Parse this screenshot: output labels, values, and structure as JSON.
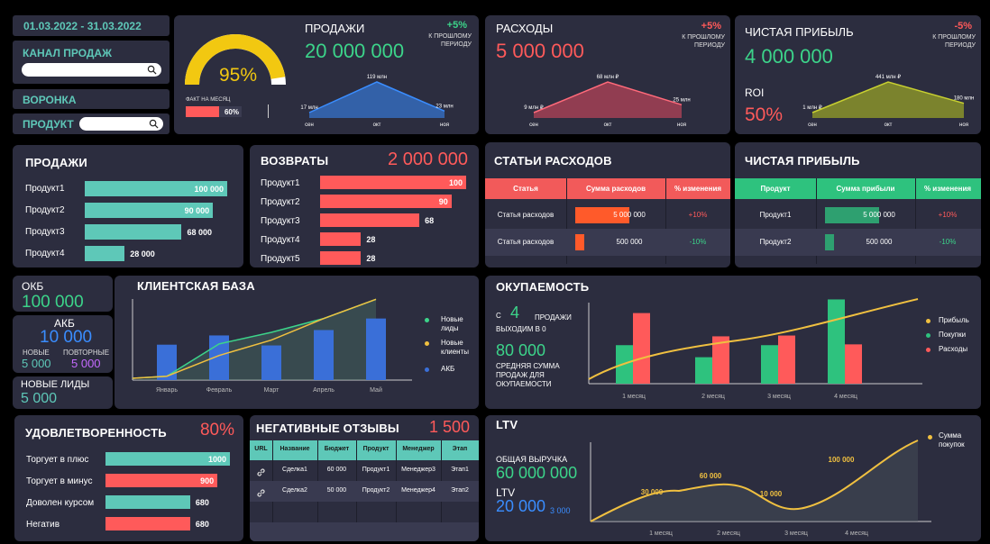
{
  "filters": {
    "date_range": "01.03.2022 - 31.03.2022",
    "channel_label": "КАНАЛ ПРОДАЖ",
    "funnel_label": "ВОРОНКА",
    "product_label": "ПРОДУКТ"
  },
  "gauge": {
    "percent_label": "95%",
    "fact_label": "ФАКТ НА МЕСЯЦ",
    "fact_percent": "60%",
    "fact_fraction": 0.6,
    "gauge_fraction": 0.95
  },
  "kpi_sales": {
    "title": "ПРОДАЖИ",
    "value": "20 000 000",
    "change": "+5%",
    "change_note": "К ПРОШЛОМУ ПЕРИОДУ",
    "chart_data": {
      "type": "area",
      "categories": [
        "сен",
        "окт",
        "ноя"
      ],
      "values": [
        17,
        119,
        23
      ],
      "labels": [
        "17 млн",
        "119 млн",
        "23 млн"
      ]
    }
  },
  "kpi_expenses": {
    "title": "РАСХОДЫ",
    "value": "5 000 000",
    "change": "+5%",
    "change_note": "К ПРОШЛОМУ ПЕРИОДУ",
    "chart_data": {
      "type": "area",
      "categories": [
        "сен",
        "окт",
        "ноя"
      ],
      "values": [
        9,
        68,
        25
      ],
      "labels": [
        "9 млн ₽",
        "68 млн ₽",
        "25 млн"
      ]
    }
  },
  "kpi_profit": {
    "title": "ЧИСТАЯ ПРИБЫЛЬ",
    "value": "4 000 000",
    "change": "-5%",
    "change_note": "К ПРОШЛОМУ ПЕРИОДУ",
    "roi_label": "ROI",
    "roi_value": "50%",
    "chart_data": {
      "type": "area",
      "categories": [
        "сен",
        "окт",
        "ноя"
      ],
      "values": [
        1,
        441,
        180
      ],
      "labels": [
        "1 млн ₽",
        "441 млн ₽",
        "180 млн"
      ]
    }
  },
  "sales_products": {
    "title": "ПРОДАЖИ",
    "chart_data": {
      "type": "bar",
      "categories": [
        "Продукт1",
        "Продукт2",
        "Продукт3",
        "Продукт4"
      ],
      "values": [
        100000,
        90000,
        68000,
        28000
      ],
      "value_labels": [
        "100 000",
        "90 000",
        "68 000",
        "28 000"
      ],
      "xlim": [
        0,
        100000
      ]
    }
  },
  "returns": {
    "title": "ВОЗВРАТЫ",
    "total": "2 000 000",
    "chart_data": {
      "type": "bar",
      "categories": [
        "Продукт1",
        "Продукт2",
        "Продукт3",
        "Продукт4",
        "Продукт5"
      ],
      "values": [
        100,
        90,
        68,
        28,
        28
      ],
      "value_labels": [
        "100",
        "90",
        "68",
        "28",
        "28"
      ],
      "xlim": [
        0,
        100
      ]
    }
  },
  "expense_items": {
    "title": "СТАТЬИ РАСХОДОВ",
    "headers": [
      "Статья",
      "Сумма расходов",
      "% изменения"
    ],
    "rows": [
      {
        "name": "Статья расходов",
        "amount": "5 000 000",
        "fraction": 1.0,
        "change": "+10%"
      },
      {
        "name": "Статья расходов",
        "amount": "500 000",
        "fraction": 0.1,
        "change": "-10%"
      }
    ]
  },
  "profit_items": {
    "title": "ЧИСТАЯ ПРИБЫЛЬ",
    "headers": [
      "Продукт",
      "Сумма прибыли",
      "% изменения"
    ],
    "rows": [
      {
        "name": "Продукт1",
        "amount": "5 000 000",
        "fraction": 1.0,
        "change": "+10%"
      },
      {
        "name": "Продукт2",
        "amount": "500 000",
        "fraction": 0.1,
        "change": "-10%"
      }
    ]
  },
  "okb": {
    "label": "ОКБ",
    "value": "100 000"
  },
  "akb": {
    "label": "АКБ",
    "value": "10 000",
    "new_label": "НОВЫЕ",
    "new_value": "5 000",
    "repeat_label": "ПОВТОРНЫЕ",
    "repeat_value": "5 000"
  },
  "new_leads": {
    "label": "НОВЫЕ ЛИДЫ",
    "value": "5 000"
  },
  "client_base": {
    "title": "КЛИЕНТСКАЯ БАЗА",
    "legend": [
      "Новые лиды",
      "Новые клиенты",
      "АКБ"
    ],
    "legend_colors": [
      "#3cd48a",
      "#f0c040",
      "#3a6fd8"
    ],
    "chart_data": {
      "type": "bar",
      "categories": [
        "Январь",
        "Февраль",
        "Март",
        "Апрель",
        "Май"
      ],
      "series": [
        {
          "name": "АКБ",
          "values": [
            46,
            58,
            45,
            65,
            80
          ]
        },
        {
          "name": "Новые лиды",
          "values": [
            5,
            47,
            62,
            80,
            105
          ]
        },
        {
          "name": "Новые клиенты",
          "values": [
            5,
            32,
            52,
            80,
            105
          ]
        }
      ],
      "ylim": [
        0,
        110
      ]
    }
  },
  "payback": {
    "title": "ОКУПАЕМОСТЬ",
    "prefix": "С",
    "months": "4",
    "months_text": "ПРОДАЖИ ВЫХОДИМ В 0",
    "avg_value": "80 000",
    "avg_text": "СРЕДНЯЯ СУММА ПРОДАЖ ДЛЯ ОКУПАЕМОСТИ",
    "legend": [
      "Прибыль",
      "Покупки",
      "Расходы"
    ],
    "legend_colors": [
      "#f0c040",
      "#2ec27e",
      "#ff5a5a"
    ],
    "chart_data": {
      "type": "bar",
      "categories": [
        "1 месяц",
        "2 месяц",
        "3 месяц",
        "4 месяц"
      ],
      "series": [
        {
          "name": "Покупки",
          "values": [
            48,
            33,
            48,
            105
          ]
        },
        {
          "name": "Расходы",
          "values": [
            88,
            59,
            60,
            49
          ]
        },
        {
          "name": "Прибыль",
          "values": [
            4,
            32,
            60,
            105
          ]
        }
      ],
      "ylim": [
        0,
        110
      ]
    }
  },
  "satisfaction": {
    "title": "УДОВЛЕТВОРЕННОСТЬ",
    "percent": "80%",
    "chart_data": {
      "type": "bar",
      "categories": [
        "Торгует в плюс",
        "Торгует в минус",
        "Доволен курсом",
        "Негатив"
      ],
      "values": [
        1000,
        900,
        680,
        680
      ],
      "value_labels": [
        "1000",
        "900",
        "680",
        "680"
      ],
      "xlim": [
        0,
        1000
      ]
    }
  },
  "negative_reviews": {
    "title": "НЕГАТИВНЫЕ ОТЗЫВЫ",
    "count": "1 500",
    "headers": [
      "URL",
      "Название",
      "Бюджет",
      "Продукт",
      "Менеджер",
      "Этап"
    ],
    "rows": [
      [
        "link-icon",
        "Сделка1",
        "60 000",
        "Продукт1",
        "Менеджер3",
        "Этап1"
      ],
      [
        "link-icon",
        "Сделка2",
        "50 000",
        "Продукт2",
        "Менеджер4",
        "Этап2"
      ]
    ]
  },
  "ltv": {
    "title": "LTV",
    "revenue_label": "ОБЩАЯ ВЫРУЧКА",
    "revenue_value": "60 000 000",
    "ltv_label": "LTV",
    "ltv_value": "20 000",
    "ltv_sub": "3 000",
    "legend": [
      "Сумма покупок"
    ],
    "chart_data": {
      "type": "line",
      "categories": [
        "1 месяц",
        "2 месяц",
        "3 месяц",
        "4 месяц"
      ],
      "values": [
        30000,
        60000,
        10000,
        100000
      ],
      "value_labels": [
        "30 000",
        "60 000",
        "10 000",
        "100 000"
      ],
      "ylim": [
        0,
        120000
      ]
    }
  }
}
